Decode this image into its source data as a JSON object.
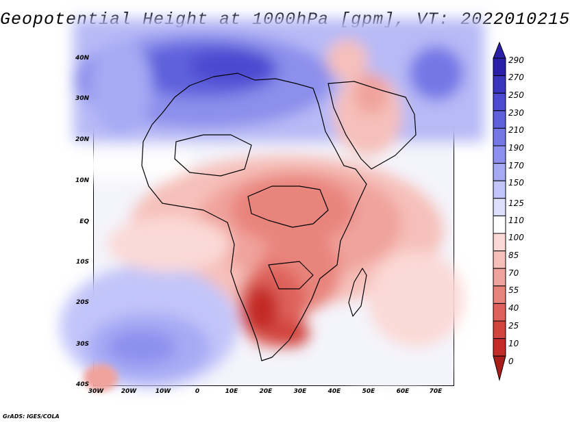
{
  "title": "Geopotential Height at 1000hPa [gpm], VT: 2022010215",
  "credit": "GrADS: IGES/COLA",
  "latitude_labels": [
    "40N",
    "30N",
    "20N",
    "10N",
    "EQ",
    "10S",
    "20S",
    "30S",
    "40S"
  ],
  "longitude_labels": [
    "30W",
    "20W",
    "10W",
    "0",
    "10E",
    "20E",
    "30E",
    "40E",
    "50E",
    "60E",
    "70E"
  ],
  "colorbar": {
    "labels": [
      "290",
      "270",
      "250",
      "230",
      "210",
      "190",
      "170",
      "150",
      "125",
      "110",
      "100",
      "85",
      "70",
      "55",
      "40",
      "25",
      "10",
      "0"
    ],
    "colors": [
      "#2a1fa8",
      "#3a35bf",
      "#4b4ad0",
      "#5e60dc",
      "#7577e6",
      "#8d90ee",
      "#a6aaf4",
      "#c2c5f9",
      "#dde0fc",
      "#ffffff",
      "#fbd9d6",
      "#f6c0ba",
      "#f0a39c",
      "#e8847c",
      "#de625b",
      "#d2453e",
      "#c32c27",
      "#a81c1a"
    ]
  }
}
